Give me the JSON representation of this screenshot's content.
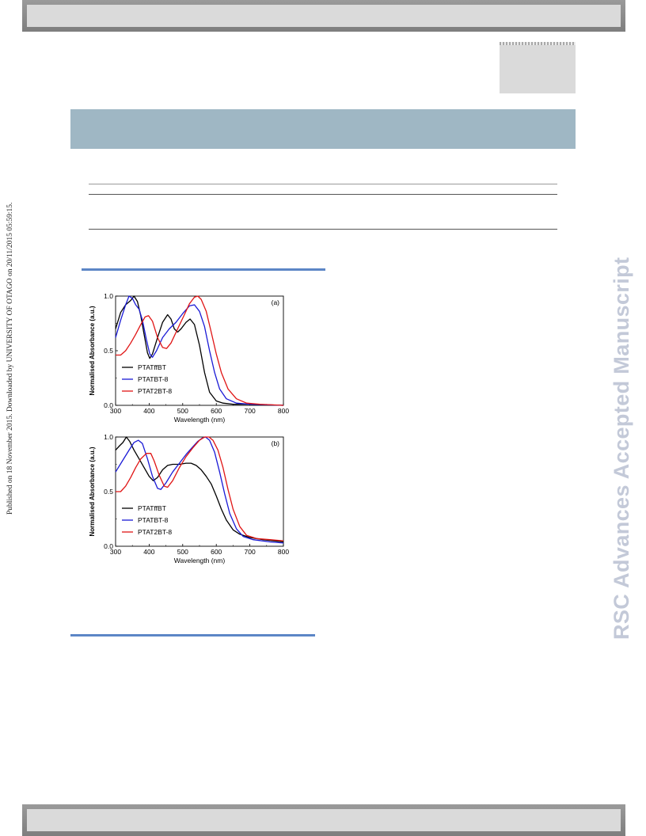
{
  "side_note": "Published on 18 November 2015. Downloaded by UNIVERSITY OF OTAGO on 20/11/2015 05:59:15.",
  "watermark": "RSC Advances Accepted Manuscript",
  "chart_data": [
    {
      "type": "line",
      "panel_label": "(a)",
      "xlabel": "Wavelength (nm)",
      "ylabel": "Normalised Absorbance (a.u.)",
      "xlim": [
        300,
        800
      ],
      "ylim": [
        0.0,
        1.0
      ],
      "x_ticks": [
        "300",
        "400",
        "500",
        "600",
        "700",
        "800"
      ],
      "y_ticks": [
        "0.0",
        "0.5",
        "1.0"
      ],
      "legend_position": "lower-left",
      "series": [
        {
          "name": "PTATffBT",
          "color": "#000000",
          "points": [
            [
              300,
              0.7
            ],
            [
              315,
              0.85
            ],
            [
              330,
              0.92
            ],
            [
              345,
              0.96
            ],
            [
              355,
              1.0
            ],
            [
              365,
              0.95
            ],
            [
              375,
              0.82
            ],
            [
              385,
              0.65
            ],
            [
              395,
              0.48
            ],
            [
              402,
              0.43
            ],
            [
              410,
              0.47
            ],
            [
              425,
              0.62
            ],
            [
              440,
              0.76
            ],
            [
              455,
              0.83
            ],
            [
              465,
              0.79
            ],
            [
              475,
              0.7
            ],
            [
              485,
              0.67
            ],
            [
              495,
              0.7
            ],
            [
              510,
              0.76
            ],
            [
              522,
              0.79
            ],
            [
              535,
              0.74
            ],
            [
              550,
              0.55
            ],
            [
              565,
              0.3
            ],
            [
              580,
              0.12
            ],
            [
              600,
              0.04
            ],
            [
              620,
              0.02
            ],
            [
              650,
              0.01
            ],
            [
              700,
              0.01
            ],
            [
              800,
              0.0
            ]
          ]
        },
        {
          "name": "PTATBT-8",
          "color": "#1a1ad6",
          "points": [
            [
              300,
              0.62
            ],
            [
              315,
              0.78
            ],
            [
              330,
              0.92
            ],
            [
              340,
              1.0
            ],
            [
              350,
              0.98
            ],
            [
              360,
              0.92
            ],
            [
              370,
              0.88
            ],
            [
              380,
              0.78
            ],
            [
              392,
              0.6
            ],
            [
              402,
              0.47
            ],
            [
              410,
              0.44
            ],
            [
              422,
              0.5
            ],
            [
              440,
              0.62
            ],
            [
              460,
              0.7
            ],
            [
              480,
              0.76
            ],
            [
              500,
              0.84
            ],
            [
              520,
              0.91
            ],
            [
              535,
              0.92
            ],
            [
              550,
              0.86
            ],
            [
              565,
              0.72
            ],
            [
              580,
              0.5
            ],
            [
              595,
              0.3
            ],
            [
              610,
              0.15
            ],
            [
              630,
              0.06
            ],
            [
              660,
              0.02
            ],
            [
              700,
              0.01
            ],
            [
              800,
              0.0
            ]
          ]
        },
        {
          "name": "PTAT2BT-8",
          "color": "#e01515",
          "points": [
            [
              300,
              0.46
            ],
            [
              315,
              0.46
            ],
            [
              330,
              0.5
            ],
            [
              345,
              0.57
            ],
            [
              360,
              0.65
            ],
            [
              375,
              0.74
            ],
            [
              388,
              0.81
            ],
            [
              398,
              0.82
            ],
            [
              410,
              0.77
            ],
            [
              425,
              0.62
            ],
            [
              440,
              0.53
            ],
            [
              452,
              0.52
            ],
            [
              465,
              0.57
            ],
            [
              485,
              0.7
            ],
            [
              505,
              0.83
            ],
            [
              520,
              0.93
            ],
            [
              535,
              0.99
            ],
            [
              545,
              1.0
            ],
            [
              555,
              0.97
            ],
            [
              570,
              0.86
            ],
            [
              585,
              0.67
            ],
            [
              600,
              0.47
            ],
            [
              615,
              0.3
            ],
            [
              635,
              0.15
            ],
            [
              660,
              0.06
            ],
            [
              690,
              0.02
            ],
            [
              730,
              0.01
            ],
            [
              800,
              0.0
            ]
          ]
        }
      ]
    },
    {
      "type": "line",
      "panel_label": "(b)",
      "xlabel": "Wavelength (nm)",
      "ylabel": "Normalised Absorbance (a.u.)",
      "xlim": [
        300,
        800
      ],
      "ylim": [
        0.0,
        1.0
      ],
      "x_ticks": [
        "300",
        "400",
        "500",
        "600",
        "700",
        "800"
      ],
      "y_ticks": [
        "0.0",
        "0.5",
        "1.0"
      ],
      "legend_position": "lower-left",
      "series": [
        {
          "name": "PTATffBT",
          "color": "#000000",
          "points": [
            [
              300,
              0.88
            ],
            [
              312,
              0.92
            ],
            [
              322,
              0.95
            ],
            [
              332,
              1.0
            ],
            [
              342,
              0.96
            ],
            [
              355,
              0.88
            ],
            [
              370,
              0.8
            ],
            [
              385,
              0.72
            ],
            [
              400,
              0.64
            ],
            [
              412,
              0.6
            ],
            [
              425,
              0.63
            ],
            [
              440,
              0.7
            ],
            [
              455,
              0.74
            ],
            [
              470,
              0.75
            ],
            [
              490,
              0.75
            ],
            [
              510,
              0.76
            ],
            [
              525,
              0.76
            ],
            [
              540,
              0.74
            ],
            [
              555,
              0.7
            ],
            [
              570,
              0.64
            ],
            [
              585,
              0.57
            ],
            [
              600,
              0.46
            ],
            [
              615,
              0.34
            ],
            [
              630,
              0.24
            ],
            [
              650,
              0.15
            ],
            [
              670,
              0.11
            ],
            [
              700,
              0.08
            ],
            [
              740,
              0.06
            ],
            [
              800,
              0.04
            ]
          ]
        },
        {
          "name": "PTATBT-8",
          "color": "#1a1ad6",
          "points": [
            [
              300,
              0.68
            ],
            [
              320,
              0.78
            ],
            [
              340,
              0.88
            ],
            [
              355,
              0.95
            ],
            [
              368,
              0.97
            ],
            [
              380,
              0.94
            ],
            [
              395,
              0.8
            ],
            [
              410,
              0.64
            ],
            [
              425,
              0.53
            ],
            [
              435,
              0.52
            ],
            [
              450,
              0.58
            ],
            [
              470,
              0.68
            ],
            [
              490,
              0.76
            ],
            [
              510,
              0.84
            ],
            [
              530,
              0.91
            ],
            [
              545,
              0.96
            ],
            [
              558,
              0.99
            ],
            [
              568,
              1.0
            ],
            [
              580,
              0.97
            ],
            [
              595,
              0.86
            ],
            [
              610,
              0.68
            ],
            [
              625,
              0.48
            ],
            [
              640,
              0.3
            ],
            [
              660,
              0.16
            ],
            [
              680,
              0.09
            ],
            [
              710,
              0.06
            ],
            [
              760,
              0.04
            ],
            [
              800,
              0.03
            ]
          ]
        },
        {
          "name": "PTAT2BT-8",
          "color": "#e01515",
          "points": [
            [
              300,
              0.5
            ],
            [
              315,
              0.5
            ],
            [
              330,
              0.55
            ],
            [
              345,
              0.63
            ],
            [
              360,
              0.72
            ],
            [
              375,
              0.8
            ],
            [
              392,
              0.85
            ],
            [
              405,
              0.85
            ],
            [
              415,
              0.78
            ],
            [
              430,
              0.65
            ],
            [
              445,
              0.55
            ],
            [
              455,
              0.54
            ],
            [
              470,
              0.6
            ],
            [
              490,
              0.72
            ],
            [
              510,
              0.82
            ],
            [
              530,
              0.9
            ],
            [
              550,
              0.97
            ],
            [
              565,
              1.0
            ],
            [
              578,
              1.0
            ],
            [
              590,
              0.97
            ],
            [
              605,
              0.88
            ],
            [
              620,
              0.72
            ],
            [
              635,
              0.52
            ],
            [
              650,
              0.34
            ],
            [
              670,
              0.18
            ],
            [
              690,
              0.1
            ],
            [
              720,
              0.07
            ],
            [
              760,
              0.06
            ],
            [
              800,
              0.05
            ]
          ]
        }
      ]
    }
  ]
}
